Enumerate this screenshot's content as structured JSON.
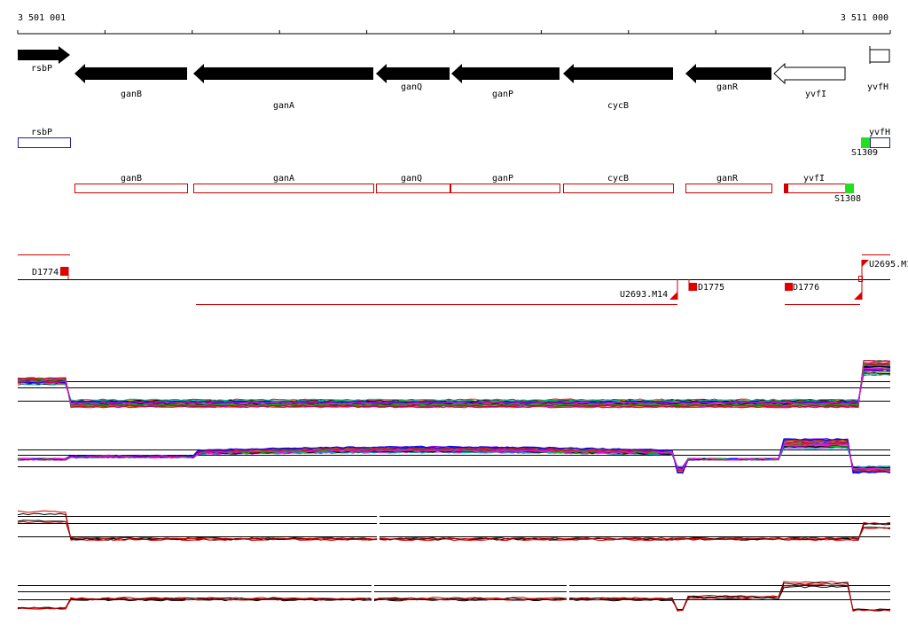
{
  "ruler": {
    "start": "3 501 001",
    "end": "3 511 000"
  },
  "genes": [
    {
      "label": "rsbP"
    },
    {
      "label": "ganB"
    },
    {
      "label": "ganA"
    },
    {
      "label": "ganQ"
    },
    {
      "label": "ganP"
    },
    {
      "label": "cycB"
    },
    {
      "label": "ganR"
    },
    {
      "label": "yvfI"
    },
    {
      "label": "yvfH"
    }
  ],
  "annotations": [
    {
      "label": "rsbP"
    },
    {
      "label": "yvfH"
    },
    {
      "label": "S1309"
    },
    {
      "label": "ganB"
    },
    {
      "label": "ganA"
    },
    {
      "label": "ganQ"
    },
    {
      "label": "ganP"
    },
    {
      "label": "cycB"
    },
    {
      "label": "ganR"
    },
    {
      "label": "yvfI"
    },
    {
      "label": "S1308"
    }
  ],
  "features": [
    {
      "label": "D1774"
    },
    {
      "label": "U2695.M1"
    },
    {
      "label": "U2693.M14"
    },
    {
      "label": "D1775"
    },
    {
      "label": "D1776"
    }
  ]
}
